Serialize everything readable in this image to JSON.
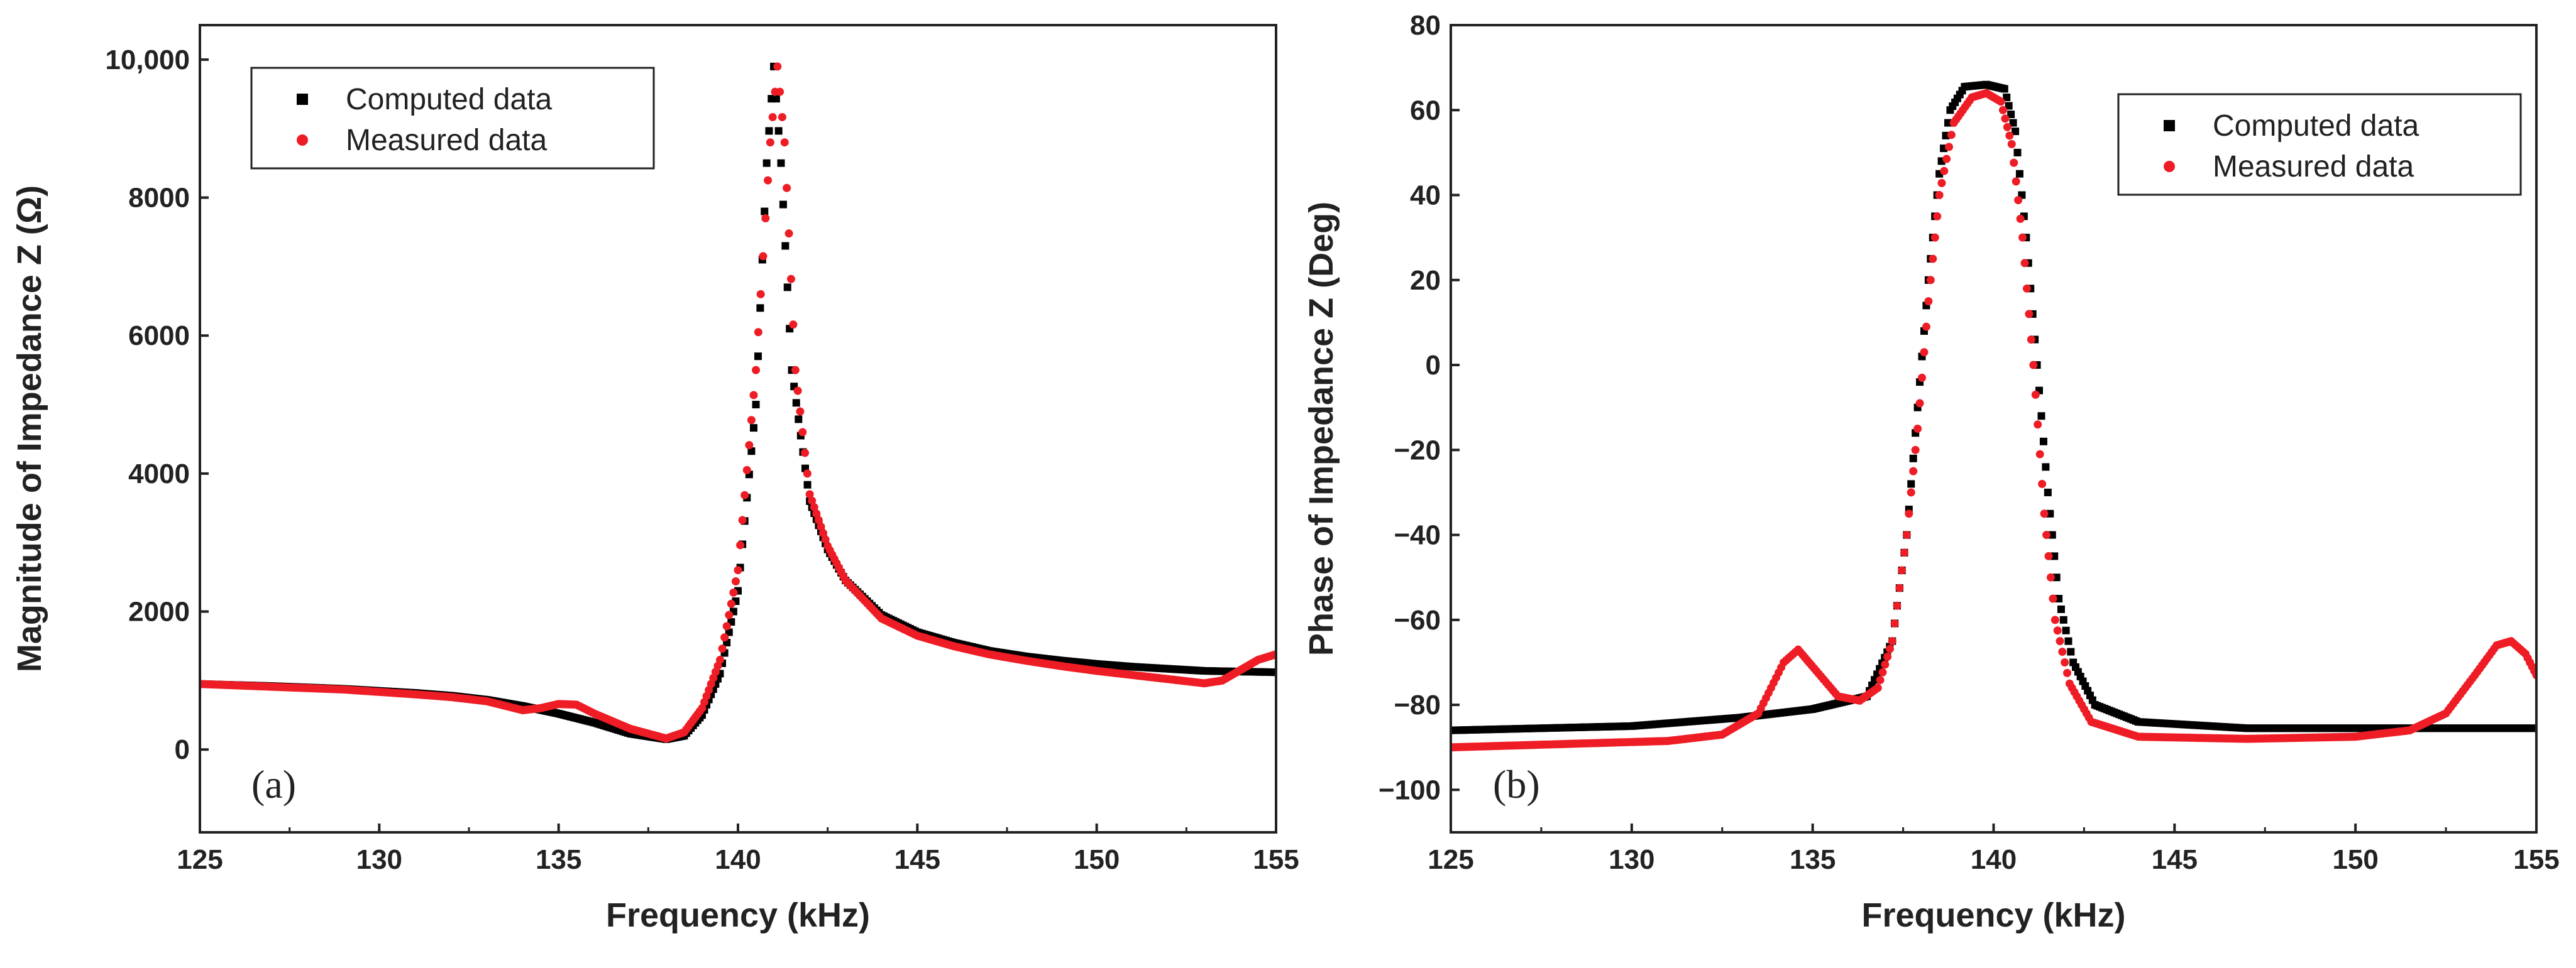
{
  "chart_data": [
    {
      "type": "scatter",
      "panel_label": "(a)",
      "xlabel": "Frequency (kHz)",
      "ylabel": "Magnitude  of Impedance Z (Ω)",
      "xlim": [
        125,
        155
      ],
      "ylim": [
        -1200,
        10500
      ],
      "xticks": [
        125,
        130,
        135,
        140,
        145,
        150,
        155
      ],
      "xtick_labels": [
        "125",
        "130",
        "135",
        "140",
        "145",
        "150",
        "155"
      ],
      "yticks": [
        0,
        2000,
        4000,
        6000,
        8000,
        10000
      ],
      "ytick_labels": [
        "0",
        "2000",
        "4000",
        "6000",
        "8000",
        "10,000"
      ],
      "legend": {
        "position": "top-left",
        "entries": [
          "Computed data",
          "Measured data"
        ]
      },
      "series": [
        {
          "name": "Computed data",
          "color": "#000000",
          "marker": "square",
          "points": [
            [
              125,
              950
            ],
            [
              127,
              920
            ],
            [
              129,
              880
            ],
            [
              131,
              820
            ],
            [
              132,
              780
            ],
            [
              133,
              720
            ],
            [
              134,
              630
            ],
            [
              135,
              520
            ],
            [
              136,
              390
            ],
            [
              137,
              230
            ],
            [
              138,
              150
            ],
            [
              138.5,
              200
            ],
            [
              139,
              500
            ],
            [
              139.5,
              1100
            ],
            [
              140,
              2300
            ],
            [
              140.5,
              5000
            ],
            [
              140.8,
              8500
            ],
            [
              141,
              9900
            ],
            [
              141.2,
              8500
            ],
            [
              141.5,
              5500
            ],
            [
              142,
              3600
            ],
            [
              142.5,
              2900
            ],
            [
              143,
              2450
            ],
            [
              144,
              1950
            ],
            [
              145,
              1700
            ],
            [
              146,
              1550
            ],
            [
              147,
              1430
            ],
            [
              148,
              1350
            ],
            [
              149,
              1290
            ],
            [
              150,
              1240
            ],
            [
              151,
              1200
            ],
            [
              152,
              1170
            ],
            [
              153,
              1140
            ],
            [
              154,
              1130
            ],
            [
              155,
              1120
            ]
          ]
        },
        {
          "name": "Measured data",
          "color": "#ee1c25",
          "marker": "circle",
          "points": [
            [
              125,
              950
            ],
            [
              127,
              910
            ],
            [
              129,
              870
            ],
            [
              131,
              800
            ],
            [
              132,
              760
            ],
            [
              133,
              700
            ],
            [
              134,
              570
            ],
            [
              134.5,
              600
            ],
            [
              135,
              660
            ],
            [
              135.5,
              650
            ],
            [
              136,
              520
            ],
            [
              137,
              300
            ],
            [
              138,
              160
            ],
            [
              138.5,
              250
            ],
            [
              139,
              600
            ],
            [
              139.5,
              1300
            ],
            [
              140,
              2600
            ],
            [
              140.5,
              5500
            ],
            [
              140.9,
              8800
            ],
            [
              141.1,
              9900
            ],
            [
              141.3,
              8800
            ],
            [
              141.6,
              5500
            ],
            [
              142,
              3700
            ],
            [
              142.5,
              2950
            ],
            [
              143,
              2450
            ],
            [
              144,
              1900
            ],
            [
              145,
              1650
            ],
            [
              146,
              1500
            ],
            [
              147,
              1380
            ],
            [
              148,
              1290
            ],
            [
              149,
              1210
            ],
            [
              150,
              1140
            ],
            [
              151,
              1080
            ],
            [
              152,
              1020
            ],
            [
              153,
              960
            ],
            [
              153.5,
              1000
            ],
            [
              154,
              1150
            ],
            [
              154.5,
              1300
            ],
            [
              155,
              1380
            ]
          ]
        }
      ]
    },
    {
      "type": "scatter",
      "panel_label": "(b)",
      "xlabel": "Frequency (kHz)",
      "ylabel": "Phase of  Impedance Z (Deg)",
      "xlim": [
        125,
        155
      ],
      "ylim": [
        -110,
        80
      ],
      "xticks": [
        125,
        130,
        135,
        140,
        145,
        150,
        155
      ],
      "xtick_labels": [
        "125",
        "130",
        "135",
        "140",
        "145",
        "150",
        "155"
      ],
      "yticks": [
        -100,
        -80,
        -60,
        -40,
        -20,
        0,
        20,
        40,
        60,
        80
      ],
      "ytick_labels": [
        "−100",
        "−80",
        "−60",
        "−40",
        "−20",
        "0",
        "20",
        "40",
        "60",
        "80"
      ],
      "legend": {
        "position": "top-right",
        "entries": [
          "Computed data",
          "Measured data"
        ]
      },
      "series": [
        {
          "name": "Computed data",
          "color": "#000000",
          "marker": "square",
          "points": [
            [
              125,
              -86
            ],
            [
              130,
              -85
            ],
            [
              133,
              -83
            ],
            [
              135,
              -81
            ],
            [
              136.5,
              -78
            ],
            [
              137.2,
              -65
            ],
            [
              137.6,
              -40
            ],
            [
              137.9,
              -10
            ],
            [
              138.2,
              20
            ],
            [
              138.5,
              45
            ],
            [
              138.8,
              60
            ],
            [
              139.2,
              65.5
            ],
            [
              139.8,
              66
            ],
            [
              140.3,
              65
            ],
            [
              140.6,
              55
            ],
            [
              140.9,
              30
            ],
            [
              141.2,
              0
            ],
            [
              141.5,
              -30
            ],
            [
              141.8,
              -55
            ],
            [
              142.2,
              -70
            ],
            [
              142.8,
              -80
            ],
            [
              144,
              -84
            ],
            [
              147,
              -85.5
            ],
            [
              150,
              -85.5
            ],
            [
              155,
              -85.5
            ]
          ]
        },
        {
          "name": "Measured data",
          "color": "#ee1c25",
          "marker": "circle",
          "points": [
            [
              125,
              -90
            ],
            [
              127,
              -89.5
            ],
            [
              129,
              -89
            ],
            [
              131,
              -88.5
            ],
            [
              132.5,
              -87
            ],
            [
              133.5,
              -82
            ],
            [
              134.2,
              -70
            ],
            [
              134.6,
              -67
            ],
            [
              135.1,
              -72
            ],
            [
              135.7,
              -78
            ],
            [
              136.3,
              -79
            ],
            [
              136.8,
              -76
            ],
            [
              137.2,
              -65
            ],
            [
              137.6,
              -40
            ],
            [
              137.9,
              -15
            ],
            [
              138.2,
              15
            ],
            [
              138.5,
              40
            ],
            [
              138.9,
              57
            ],
            [
              139.4,
              63
            ],
            [
              139.8,
              64
            ],
            [
              140.2,
              62
            ],
            [
              140.5,
              52
            ],
            [
              140.8,
              30
            ],
            [
              141.1,
              0
            ],
            [
              141.4,
              -35
            ],
            [
              141.7,
              -60
            ],
            [
              142.1,
              -75
            ],
            [
              142.7,
              -84
            ],
            [
              144,
              -87.5
            ],
            [
              147,
              -88
            ],
            [
              150,
              -87.5
            ],
            [
              151.5,
              -86
            ],
            [
              152.5,
              -82
            ],
            [
              153.3,
              -73
            ],
            [
              153.9,
              -66
            ],
            [
              154.3,
              -65
            ],
            [
              154.7,
              -68
            ],
            [
              155,
              -73
            ]
          ]
        }
      ]
    }
  ]
}
